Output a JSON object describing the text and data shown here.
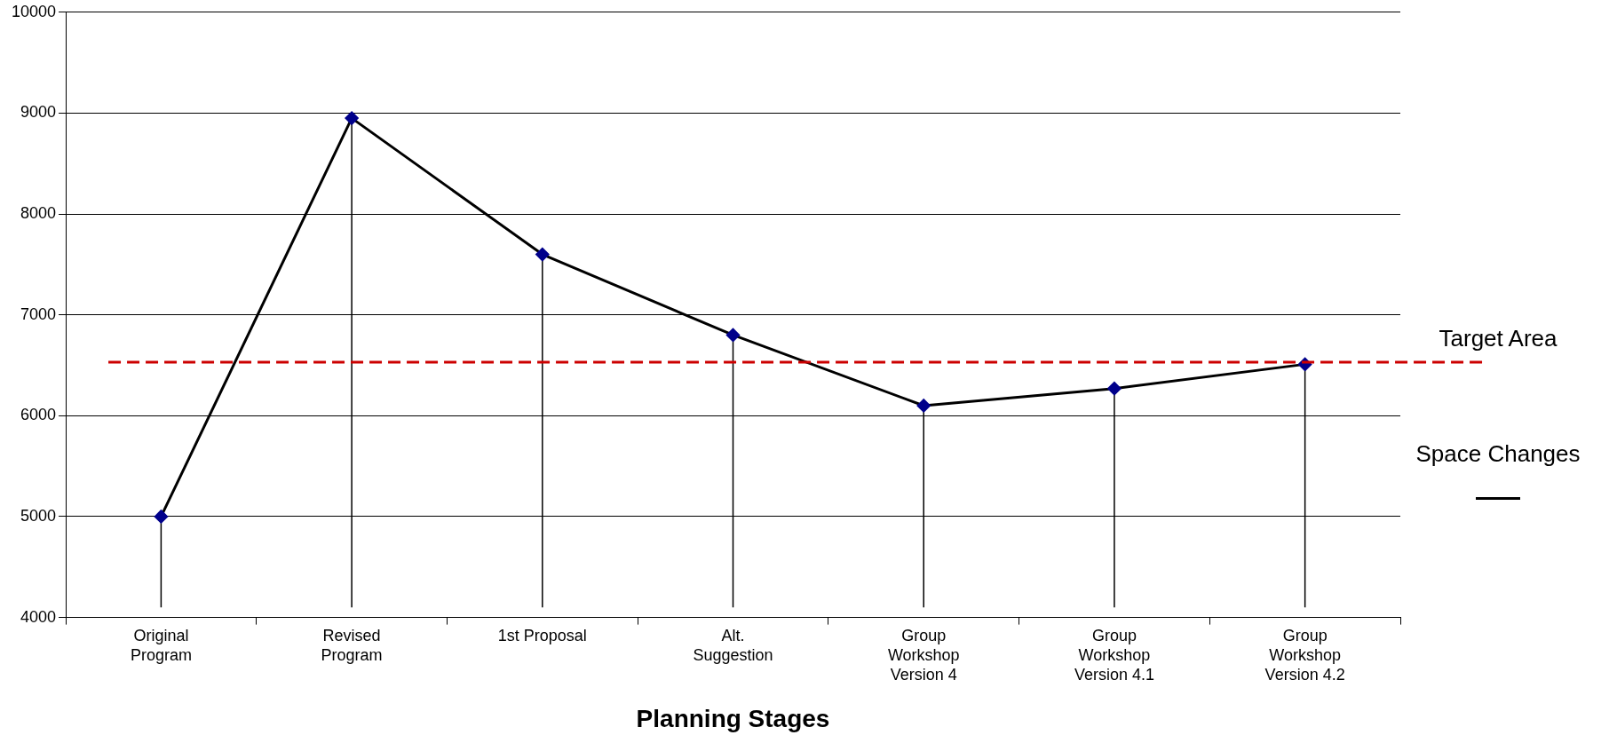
{
  "chart_data": {
    "type": "line",
    "xlabel": "Planning Stages",
    "categories": [
      "Original Program",
      "Revised Program",
      "1st Proposal",
      "Alt. Suggestion",
      "Group Workshop Version 4",
      "Group Workshop Version 4.1",
      "Group Workshop Version 4.2"
    ],
    "series": [
      {
        "name": "Space Changes",
        "color": "#000000",
        "values": [
          5000,
          8950,
          7600,
          6800,
          6100,
          6270,
          6510
        ],
        "errors": [
          [
            4100,
            5000
          ],
          [
            4100,
            8950
          ],
          [
            4100,
            7600
          ],
          [
            4100,
            6800
          ],
          [
            4100,
            6100
          ],
          [
            4100,
            6270
          ],
          [
            4100,
            6510
          ]
        ]
      }
    ],
    "ylim": [
      4000,
      10000
    ],
    "yticks": [
      4000,
      5000,
      6000,
      7000,
      8000,
      9000,
      10000
    ],
    "ref_lines": [
      {
        "axis": "y",
        "value": 6530,
        "label": "Target Area",
        "color": "#cc0000",
        "line_style": "dashed"
      }
    ],
    "grid": "y",
    "legend": "right",
    "marker": "diamond",
    "line_style": "solid"
  }
}
